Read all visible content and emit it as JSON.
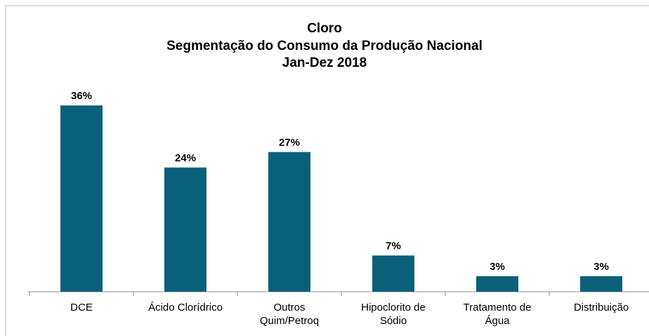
{
  "chart_data": {
    "type": "bar",
    "title": "Cloro",
    "subtitle": [
      "Segmentação do Consumo da Produção Nacional",
      "Jan-Dez 2018"
    ],
    "categories": [
      "DCE",
      "Ácido Clorídrico",
      "Outros Quim/Petroq",
      "Hipoclorito de Sódio",
      "Tratamento de Água",
      "Distribuição"
    ],
    "values": [
      36,
      24,
      27,
      7,
      3,
      3
    ],
    "value_labels": [
      "36%",
      "24%",
      "27%",
      "7%",
      "3%",
      "3%"
    ],
    "color": "#0b6079"
  }
}
